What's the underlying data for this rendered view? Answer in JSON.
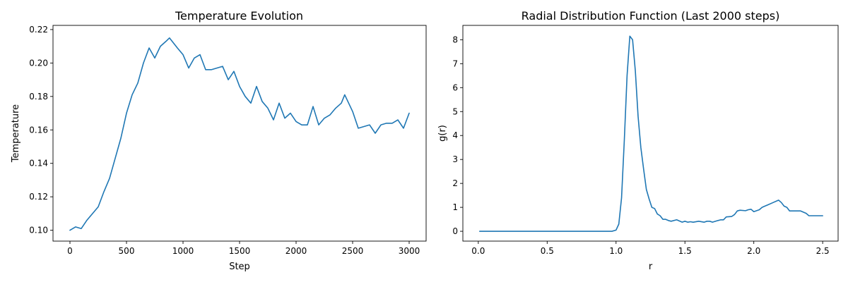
{
  "chart_data": [
    {
      "type": "line",
      "title": "Temperature Evolution",
      "xlabel": "Step",
      "ylabel": "Temperature",
      "xlim": [
        -150,
        3150
      ],
      "ylim": [
        0.0935,
        0.2225
      ],
      "xticks": [
        0,
        500,
        1000,
        1500,
        2000,
        2500,
        3000
      ],
      "xtick_labels": [
        "0",
        "500",
        "1000",
        "1500",
        "2000",
        "2500",
        "3000"
      ],
      "yticks": [
        0.1,
        0.12,
        0.14,
        0.16,
        0.18,
        0.2,
        0.22
      ],
      "ytick_labels": [
        "0.10",
        "0.12",
        "0.14",
        "0.16",
        "0.18",
        "0.20",
        "0.22"
      ],
      "grid": false,
      "color": "#1f77b4",
      "series": [
        {
          "x": [
            0,
            50,
            100,
            150,
            200,
            250,
            300,
            350,
            400,
            450,
            500,
            550,
            600,
            650,
            700,
            750,
            800,
            850,
            880,
            950,
            1000,
            1050,
            1100,
            1150,
            1200,
            1250,
            1300,
            1350,
            1400,
            1450,
            1500,
            1550,
            1600,
            1650,
            1700,
            1750,
            1800,
            1850,
            1900,
            1950,
            2000,
            2050,
            2100,
            2150,
            2200,
            2250,
            2300,
            2350,
            2400,
            2430,
            2500,
            2550,
            2600,
            2650,
            2700,
            2750,
            2800,
            2850,
            2900,
            2950,
            3000
          ],
          "y": [
            0.1,
            0.102,
            0.101,
            0.106,
            0.11,
            0.114,
            0.123,
            0.131,
            0.143,
            0.155,
            0.17,
            0.181,
            0.188,
            0.2,
            0.209,
            0.203,
            0.21,
            0.213,
            0.215,
            0.209,
            0.205,
            0.197,
            0.203,
            0.205,
            0.196,
            0.196,
            0.197,
            0.198,
            0.19,
            0.195,
            0.186,
            0.18,
            0.176,
            0.186,
            0.177,
            0.173,
            0.166,
            0.176,
            0.167,
            0.17,
            0.165,
            0.163,
            0.163,
            0.174,
            0.163,
            0.167,
            0.169,
            0.173,
            0.176,
            0.181,
            0.171,
            0.161,
            0.162,
            0.163,
            0.158,
            0.163,
            0.164,
            0.164,
            0.166,
            0.161,
            0.17
          ]
        }
      ]
    },
    {
      "type": "line",
      "title": "Radial Distribution Function (Last 2000 steps)",
      "xlabel": "r",
      "ylabel": "g(r)",
      "xlim": [
        -0.112,
        2.612
      ],
      "ylim": [
        -0.41,
        8.6
      ],
      "xticks": [
        0.0,
        0.5,
        1.0,
        1.5,
        2.0,
        2.5
      ],
      "xtick_labels": [
        "0.0",
        "0.5",
        "1.0",
        "1.5",
        "2.0",
        "2.5"
      ],
      "yticks": [
        0,
        1,
        2,
        3,
        4,
        5,
        6,
        7,
        8
      ],
      "ytick_labels": [
        "0",
        "1",
        "2",
        "3",
        "4",
        "5",
        "6",
        "7",
        "8"
      ],
      "grid": false,
      "color": "#1f77b4",
      "series": [
        {
          "x": [
            0.01,
            0.9,
            0.97,
            1.0,
            1.02,
            1.04,
            1.06,
            1.08,
            1.1,
            1.12,
            1.14,
            1.16,
            1.18,
            1.2,
            1.22,
            1.24,
            1.26,
            1.28,
            1.3,
            1.32,
            1.34,
            1.36,
            1.38,
            1.4,
            1.44,
            1.48,
            1.5,
            1.52,
            1.54,
            1.56,
            1.6,
            1.64,
            1.66,
            1.68,
            1.7,
            1.74,
            1.76,
            1.78,
            1.8,
            1.84,
            1.86,
            1.88,
            1.9,
            1.94,
            1.96,
            1.98,
            2.0,
            2.04,
            2.06,
            2.08,
            2.1,
            2.14,
            2.18,
            2.2,
            2.22,
            2.24,
            2.26,
            2.28,
            2.3,
            2.34,
            2.38,
            2.4,
            2.42,
            2.46,
            2.5
          ],
          "y": [
            0.0,
            0.0,
            0.0,
            0.05,
            0.3,
            1.4,
            3.8,
            6.5,
            8.15,
            8.0,
            6.7,
            4.8,
            3.5,
            2.6,
            1.75,
            1.35,
            1.0,
            0.95,
            0.72,
            0.65,
            0.5,
            0.5,
            0.45,
            0.42,
            0.48,
            0.38,
            0.42,
            0.38,
            0.4,
            0.38,
            0.42,
            0.38,
            0.42,
            0.42,
            0.38,
            0.45,
            0.48,
            0.48,
            0.6,
            0.62,
            0.7,
            0.85,
            0.88,
            0.86,
            0.9,
            0.92,
            0.82,
            0.9,
            1.0,
            1.05,
            1.1,
            1.2,
            1.3,
            1.2,
            1.05,
            1.0,
            0.85,
            0.85,
            0.85,
            0.85,
            0.75,
            0.65,
            0.65,
            0.65,
            0.65
          ]
        }
      ]
    }
  ]
}
